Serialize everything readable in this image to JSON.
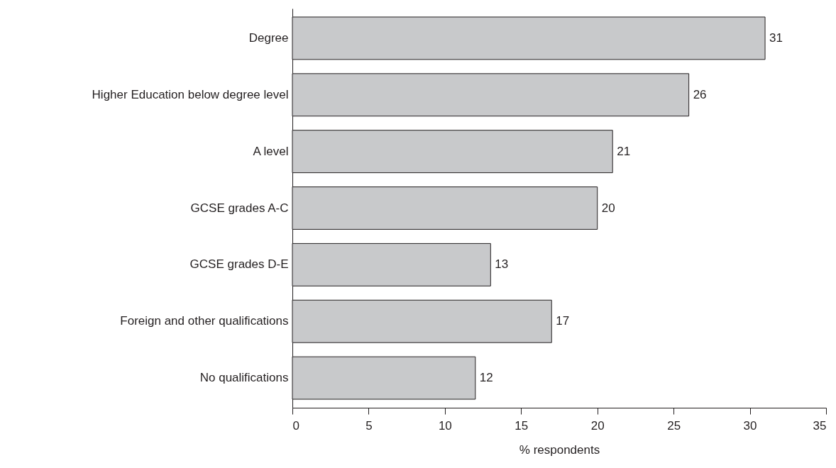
{
  "chart_data": {
    "type": "bar",
    "orientation": "horizontal",
    "categories": [
      "Degree",
      "Higher Education below degree level",
      "A level",
      "GCSE grades A-C",
      "GCSE grades D-E",
      "Foreign and other qualifications",
      "No qualifications"
    ],
    "values": [
      31,
      26,
      21,
      20,
      13,
      17,
      12
    ],
    "color": "#c8c9cb",
    "xlabel": "% respondents",
    "xlim": [
      0,
      35
    ],
    "xticks": [
      0,
      5,
      10,
      15,
      20,
      25,
      30,
      35
    ],
    "data_labels": true
  }
}
